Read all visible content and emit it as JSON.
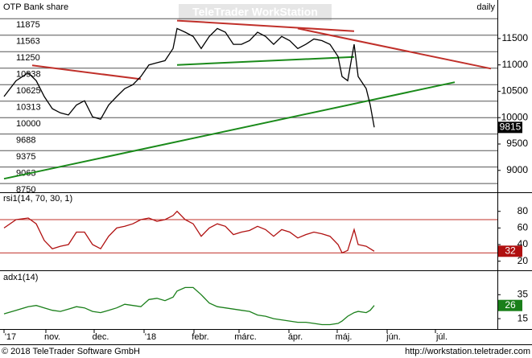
{
  "chart_data": [
    {
      "type": "line",
      "title": "OTP Bank share",
      "subtitle": "daily",
      "color": "#000000",
      "x": [
        5,
        12.5,
        20,
        25,
        30,
        35,
        40,
        45,
        50,
        55,
        60,
        65,
        70,
        75,
        80,
        85,
        90,
        95,
        100,
        105,
        110,
        112.5,
        117.5,
        122.5,
        127.5,
        132.5,
        137.5,
        142.5,
        147.5,
        152.5,
        157.5,
        162.5,
        167.5,
        172.5,
        177.5,
        182.5,
        187.5,
        192.5,
        197.5,
        202.5,
        207.5,
        212.5,
        215,
        218.5,
        222.5,
        225,
        230,
        232.5,
        235
      ],
      "values": [
        10400,
        10700,
        10850,
        10700,
        10400,
        10170,
        10090,
        10050,
        10240,
        10320,
        10015,
        9970,
        10240,
        10400,
        10550,
        10625,
        10780,
        11000,
        11040,
        11080,
        11310,
        11690,
        11620,
        11540,
        11310,
        11540,
        11690,
        11620,
        11390,
        11390,
        11460,
        11620,
        11540,
        11390,
        11540,
        11460,
        11310,
        11390,
        11490,
        11460,
        11390,
        11160,
        10780,
        10700,
        11390,
        10780,
        10550,
        10240,
        9815
      ],
      "xlim": [
        2.5,
        311.5
      ],
      "ylim": [
        8600,
        12200
      ],
      "yticks": [
        9000,
        9500,
        10000,
        10500,
        11000,
        11500
      ],
      "levels": [
        11875,
        11563,
        11250,
        10938,
        10625,
        10313,
        10000,
        9688,
        9375,
        9063,
        8750
      ],
      "level_color": "#555555",
      "trendlines": [
        {
          "x": [
            5,
            285
          ],
          "values": [
            8841,
            10671
          ],
          "color": "#1a8a1a"
        },
        {
          "x": [
            187.5,
            307.5
          ],
          "values": [
            11690,
            10930
          ],
          "color": "#c0302a"
        },
        {
          "x": [
            22.5,
            90
          ],
          "values": [
            10990,
            10730
          ],
          "color": "#c0302a"
        },
        {
          "x": [
            112.5,
            222.5
          ],
          "values": [
            11000,
            11150
          ],
          "color": "#1a8a1a"
        },
        {
          "x": [
            112.5,
            222.5
          ],
          "values": [
            11840,
            11640
          ],
          "color": "#c0302a"
        }
      ]
    },
    {
      "type": "line",
      "title": "rsi1(14, 70, 30, 1)",
      "color": "#b01010",
      "x": [
        5,
        12.5,
        20,
        25,
        30,
        35,
        40,
        45,
        50,
        55,
        60,
        65,
        70,
        75,
        80,
        85,
        90,
        95,
        100,
        105,
        110,
        112.5,
        117.5,
        122.5,
        127.5,
        132.5,
        137.5,
        142.5,
        147.5,
        152.5,
        157.5,
        162.5,
        167.5,
        172.5,
        177.5,
        182.5,
        187.5,
        192.5,
        197.5,
        202.5,
        207.5,
        212.5,
        215,
        218.5,
        222.5,
        225,
        230,
        232.5,
        235
      ],
      "values": [
        60,
        70,
        72,
        65,
        45,
        35,
        38,
        40,
        55,
        55,
        40,
        35,
        50,
        60,
        62,
        65,
        70,
        72,
        68,
        70,
        75,
        80,
        70,
        65,
        50,
        60,
        65,
        62,
        52,
        55,
        57,
        62,
        58,
        50,
        58,
        55,
        48,
        52,
        55,
        53,
        50,
        40,
        30,
        33,
        58,
        40,
        38,
        35,
        32
      ],
      "xlim": [
        2.5,
        311.5
      ],
      "ylim": [
        10,
        102
      ],
      "yticks": [
        20,
        40,
        60,
        80
      ],
      "reference_lines": [
        70,
        30
      ],
      "level_color": "#c0302a"
    },
    {
      "type": "line",
      "title": "adx1(14)",
      "color": "#1a7f1a",
      "x": [
        5,
        12.5,
        20,
        25,
        30,
        35,
        40,
        45,
        50,
        55,
        60,
        65,
        70,
        75,
        80,
        85,
        90,
        95,
        100,
        105,
        110,
        112.5,
        117.5,
        122.5,
        127.5,
        132.5,
        137.5,
        142.5,
        147.5,
        152.5,
        157.5,
        162.5,
        167.5,
        172.5,
        177.5,
        182.5,
        187.5,
        192.5,
        197.5,
        202.5,
        207.5,
        212.5,
        215,
        218.5,
        222.5,
        225,
        230,
        232.5,
        235
      ],
      "values": [
        19,
        22,
        25,
        26,
        24,
        22,
        21,
        23,
        25,
        24,
        21,
        20,
        22,
        24,
        27,
        26,
        25,
        31,
        32,
        30,
        33,
        38,
        41,
        41,
        35,
        28,
        25,
        24,
        23,
        22,
        21,
        18,
        17,
        15,
        14,
        13,
        12,
        12,
        11,
        10,
        10,
        11,
        13,
        17,
        20,
        21,
        20,
        22,
        26
      ],
      "xlim": [
        2.5,
        311.5
      ],
      "ylim": [
        7,
        54
      ],
      "yticks": [
        15,
        35
      ],
      "xticks": [
        {
          "value": 5,
          "label": "'17"
        },
        {
          "value": 31,
          "label": "nov."
        },
        {
          "value": 61,
          "label": "dec."
        },
        {
          "value": 92,
          "label": "'18"
        },
        {
          "value": 123,
          "label": "febr."
        },
        {
          "value": 151,
          "label": "márc."
        },
        {
          "value": 182,
          "label": "ápr."
        },
        {
          "value": 212,
          "label": "máj."
        },
        {
          "value": 243,
          "label": "jún."
        },
        {
          "value": 273,
          "label": "júl."
        }
      ]
    }
  ],
  "watermark": "TeleTrader WorkStation",
  "footer": {
    "copyright": "© 2018 TeleTrader Software GmbH",
    "url": "http://workstation.teletrader.com"
  }
}
